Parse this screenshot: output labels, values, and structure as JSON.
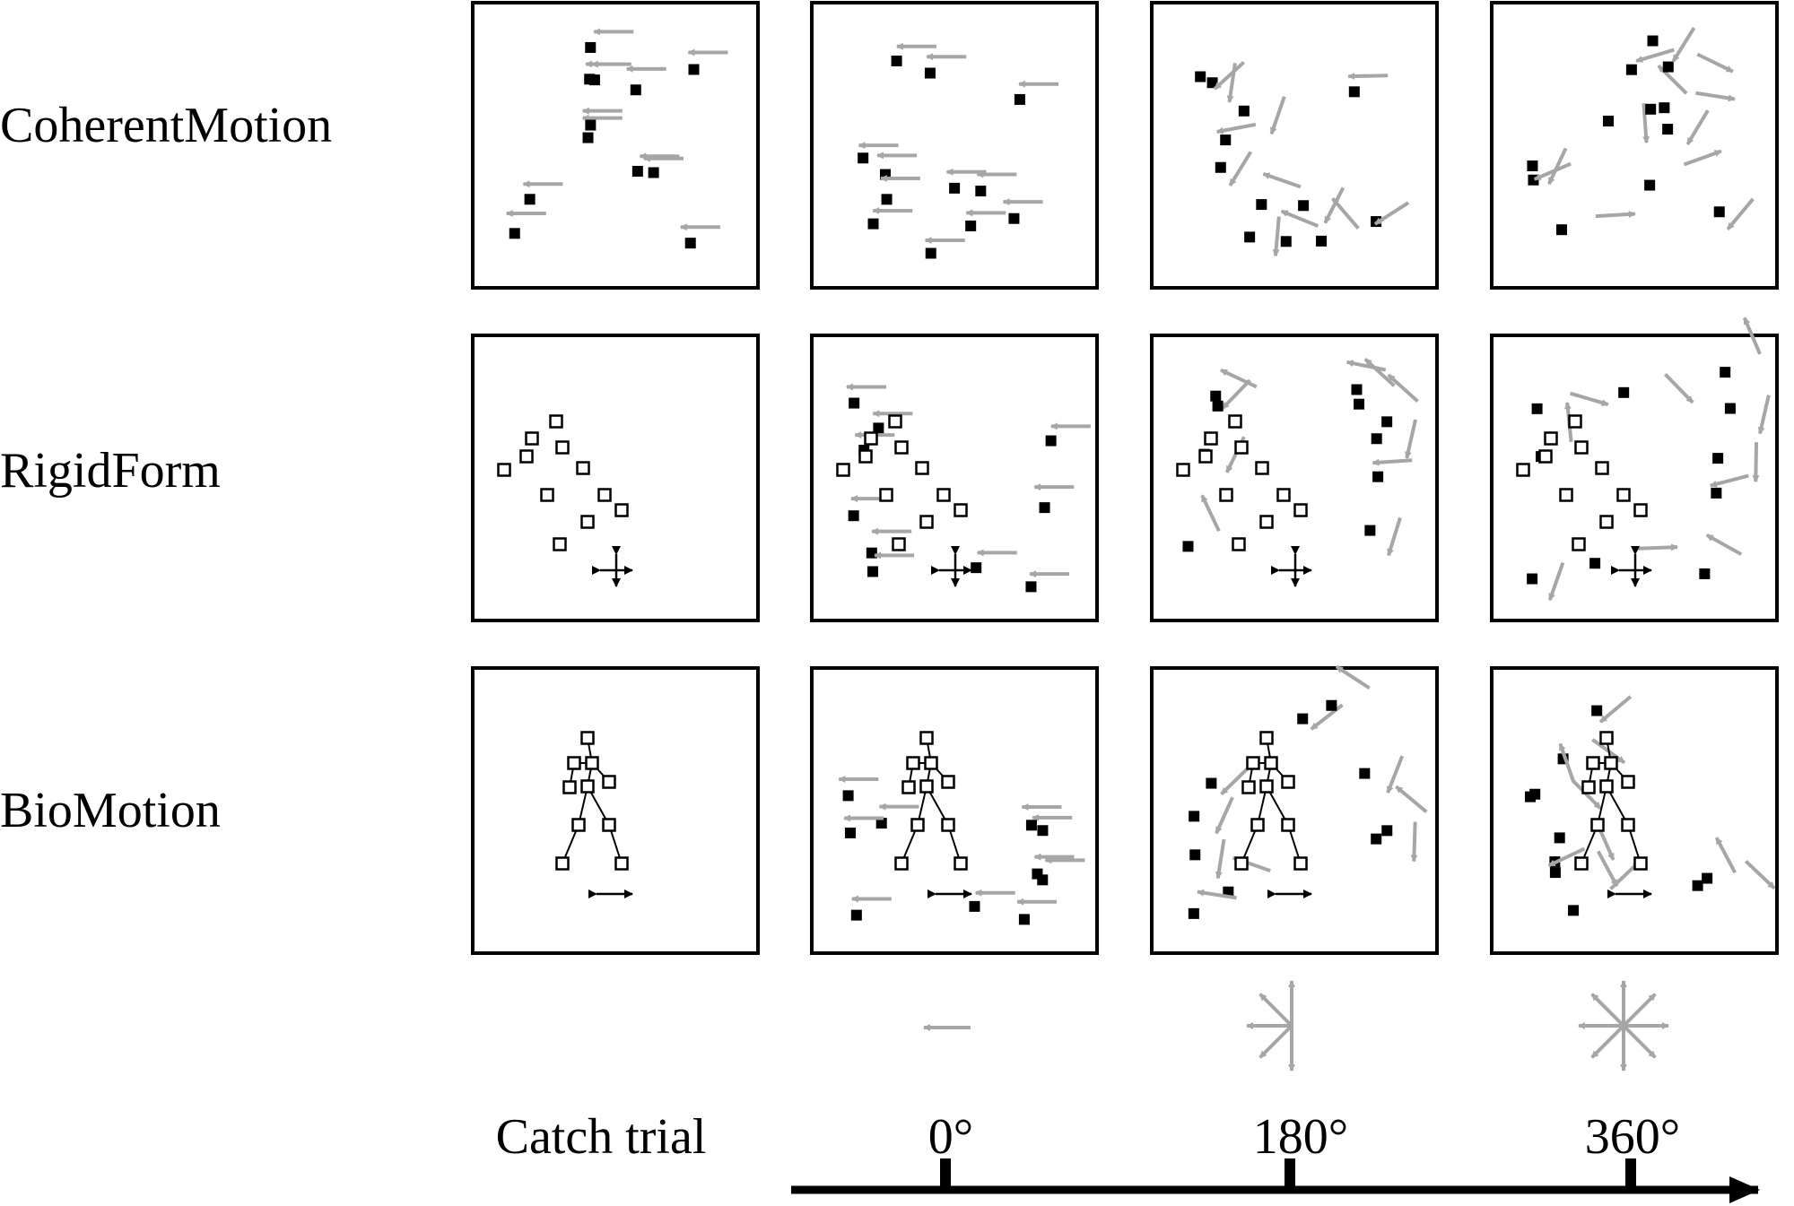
{
  "row_labels": [
    "CoherentMotion",
    "RigidForm",
    "BioMotion"
  ],
  "column_labels": [
    "Catch trial",
    "0°",
    "180°",
    "360°"
  ],
  "colors": {
    "frame": "#000000",
    "dot": "#000000",
    "arrow": "#a6a6a6",
    "axis": "#000000"
  },
  "legend_icons": [
    "single-direction-icon",
    "half-circle-directions-icon",
    "full-circle-directions-icon"
  ]
}
